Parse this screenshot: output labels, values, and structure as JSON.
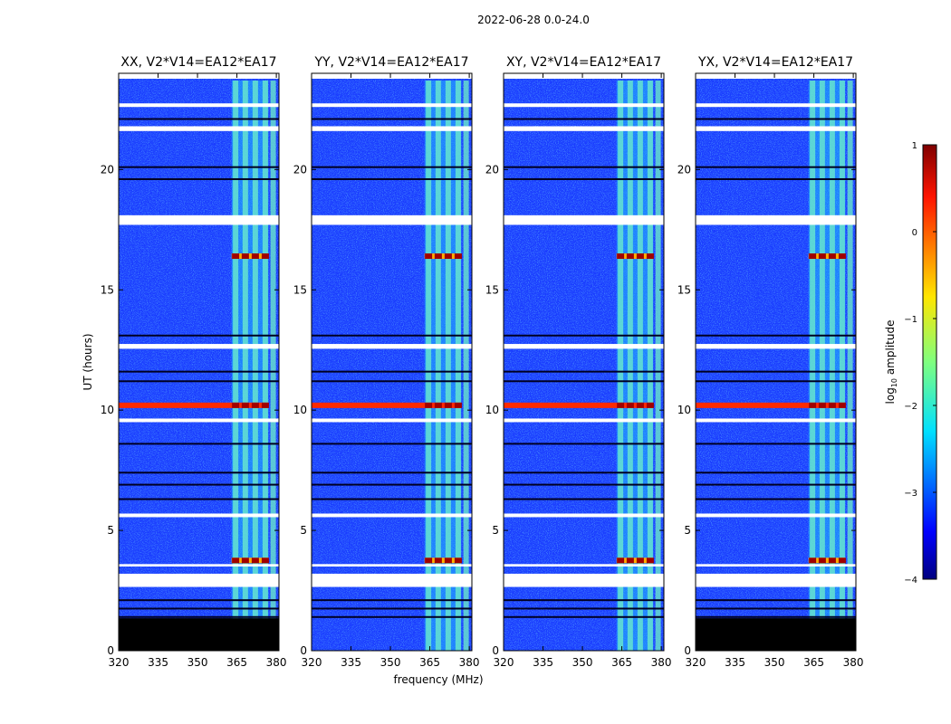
{
  "chart_data": {
    "type": "heatmap",
    "title": "2022-06-28 0.0-24.0",
    "xlabel": "frequency (MHz)",
    "ylabel": "UT (hours)",
    "xlim": [
      320,
      381
    ],
    "ylim": [
      0,
      24
    ],
    "x_ticks": [
      320,
      335,
      350,
      365,
      380
    ],
    "y_ticks": [
      0,
      5,
      10,
      15,
      20
    ],
    "colorbar": {
      "label": "log10 amplitude",
      "label_main": "log",
      "label_sub": "10",
      "label_rest": " amplitude",
      "range": [
        -4,
        1
      ],
      "ticks": [
        1,
        0,
        -1,
        -2,
        -3,
        -4
      ],
      "tick_labels": [
        "1",
        "0",
        "−1",
        "−2",
        "−3",
        "−4"
      ]
    },
    "panels": [
      {
        "title": "XX, V2*V14=EA12*EA17",
        "polarization": "XX",
        "early_blank_to": 1.35
      },
      {
        "title": "YY, V2*V14=EA12*EA17",
        "polarization": "YY",
        "early_blank_to": 0
      },
      {
        "title": "XY, V2*V14=EA12*EA17",
        "polarization": "XY",
        "early_blank_to": 0
      },
      {
        "title": "YX, V2*V14=EA12*EA17",
        "polarization": "YX",
        "early_blank_to": 1.35
      }
    ],
    "bright_band_MHz": [
      363,
      377
    ],
    "bright_channels_MHz": [
      364.5,
      368.2,
      372.0,
      375.8,
      378.8
    ],
    "flare_events_UT": [
      10.2,
      16.4,
      3.75
    ],
    "flagged_gaps_UT": [
      [
        2.65,
        3.2
      ],
      [
        3.5,
        3.6
      ],
      [
        5.55,
        5.7
      ],
      [
        9.5,
        9.65
      ],
      [
        12.55,
        12.75
      ],
      [
        17.7,
        18.1
      ],
      [
        21.6,
        21.8
      ],
      [
        22.6,
        22.75
      ]
    ],
    "dark_rows_UT": [
      1.4,
      1.75,
      2.1,
      6.3,
      6.9,
      7.4,
      8.6,
      11.2,
      11.6,
      13.1,
      19.6,
      20.1,
      22.1
    ]
  }
}
